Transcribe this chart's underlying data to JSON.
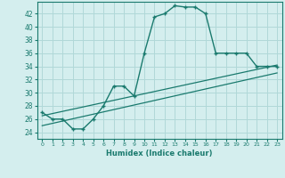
{
  "xlabel": "Humidex (Indice chaleur)",
  "bg_color": "#d4eeee",
  "grid_color": "#b0d8d8",
  "line_color": "#1a7a6e",
  "xlim": [
    -0.5,
    23.5
  ],
  "ylim": [
    23.0,
    43.8
  ],
  "yticks": [
    24,
    26,
    28,
    30,
    32,
    34,
    36,
    38,
    40,
    42
  ],
  "xticks": [
    0,
    1,
    2,
    3,
    4,
    5,
    6,
    7,
    8,
    9,
    10,
    11,
    12,
    13,
    14,
    15,
    16,
    17,
    18,
    19,
    20,
    21,
    22,
    23
  ],
  "line1_x": [
    0,
    1,
    2,
    3,
    4,
    5,
    6,
    7,
    8,
    9,
    10,
    11,
    12,
    13,
    14,
    15,
    16,
    17,
    18,
    19,
    20,
    21,
    22,
    23
  ],
  "line1_y": [
    27,
    26,
    26,
    24.5,
    24.5,
    26,
    28,
    31,
    31,
    29.5,
    36,
    41.5,
    42,
    43.2,
    43,
    43,
    42,
    36,
    36,
    36,
    36,
    34,
    34,
    34
  ],
  "line2_x": [
    0,
    23
  ],
  "line2_y": [
    26.5,
    34.2
  ],
  "line3_x": [
    0,
    23
  ],
  "line3_y": [
    25.0,
    33.0
  ]
}
